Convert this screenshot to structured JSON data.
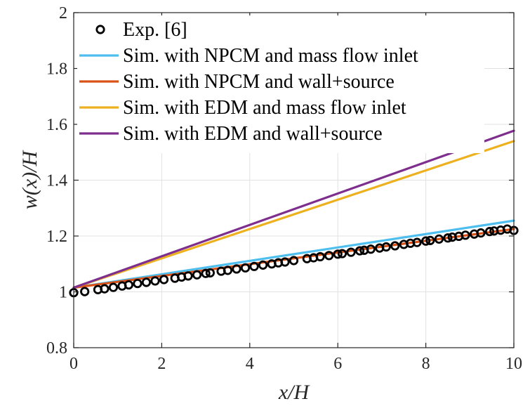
{
  "chart_data": {
    "type": "line",
    "title": "",
    "xlabel": "x/H",
    "ylabel": "w(x)/H",
    "xlim": [
      0,
      10
    ],
    "ylim": [
      0.8,
      2
    ],
    "xticks": [
      0,
      2,
      4,
      6,
      8,
      10
    ],
    "yticks": [
      0.8,
      1,
      1.2,
      1.4,
      1.6,
      1.8,
      2
    ],
    "xtick_labels": [
      "0",
      "2",
      "4",
      "6",
      "8",
      "10"
    ],
    "ytick_labels": [
      "0.8",
      "1",
      "1.2",
      "1.4",
      "1.6",
      "1.8",
      "2"
    ],
    "grid": true,
    "legend_position": "top-left",
    "series": [
      {
        "name": "Exp. [6]",
        "kind": "markers",
        "color": "#000000",
        "x": [
          0.0,
          0.25,
          0.55,
          0.7,
          0.9,
          1.1,
          1.25,
          1.45,
          1.65,
          1.85,
          2.05,
          2.3,
          2.45,
          2.6,
          2.8,
          3.0,
          3.1,
          3.35,
          3.5,
          3.7,
          3.9,
          4.1,
          4.3,
          4.5,
          4.65,
          4.8,
          5.0,
          5.3,
          5.45,
          5.6,
          5.8,
          6.0,
          6.1,
          6.3,
          6.5,
          6.6,
          6.75,
          6.95,
          7.1,
          7.3,
          7.5,
          7.65,
          7.8,
          8.0,
          8.1,
          8.3,
          8.5,
          8.6,
          8.75,
          8.9,
          9.1,
          9.25,
          9.45,
          9.55,
          9.7,
          9.85,
          10.0
        ],
        "y": [
          0.997,
          1.001,
          1.008,
          1.011,
          1.016,
          1.021,
          1.025,
          1.03,
          1.034,
          1.039,
          1.044,
          1.049,
          1.053,
          1.057,
          1.061,
          1.066,
          1.068,
          1.074,
          1.077,
          1.082,
          1.086,
          1.091,
          1.096,
          1.1,
          1.104,
          1.107,
          1.112,
          1.119,
          1.122,
          1.126,
          1.13,
          1.135,
          1.137,
          1.142,
          1.147,
          1.149,
          1.153,
          1.157,
          1.161,
          1.165,
          1.17,
          1.174,
          1.177,
          1.182,
          1.184,
          1.189,
          1.193,
          1.196,
          1.199,
          1.203,
          1.207,
          1.211,
          1.216,
          1.218,
          1.221,
          1.225,
          1.22
        ]
      },
      {
        "name": "Sim. with NPCM and mass flow inlet",
        "kind": "line",
        "color": "#4DBEEE",
        "x": [
          0,
          10
        ],
        "y": [
          1.015,
          1.255
        ]
      },
      {
        "name": "Sim. with NPCM and wall+source",
        "kind": "line",
        "color": "#D95319",
        "x": [
          0,
          10
        ],
        "y": [
          1.015,
          1.225
        ]
      },
      {
        "name": "Sim. with EDM and mass flow inlet",
        "kind": "line",
        "color": "#EDB120",
        "x": [
          0,
          10
        ],
        "y": [
          1.015,
          1.54
        ]
      },
      {
        "name": "Sim. with EDM and wall+source",
        "kind": "line",
        "color": "#7E2F8E",
        "x": [
          0,
          10
        ],
        "y": [
          1.015,
          1.577
        ]
      }
    ]
  }
}
